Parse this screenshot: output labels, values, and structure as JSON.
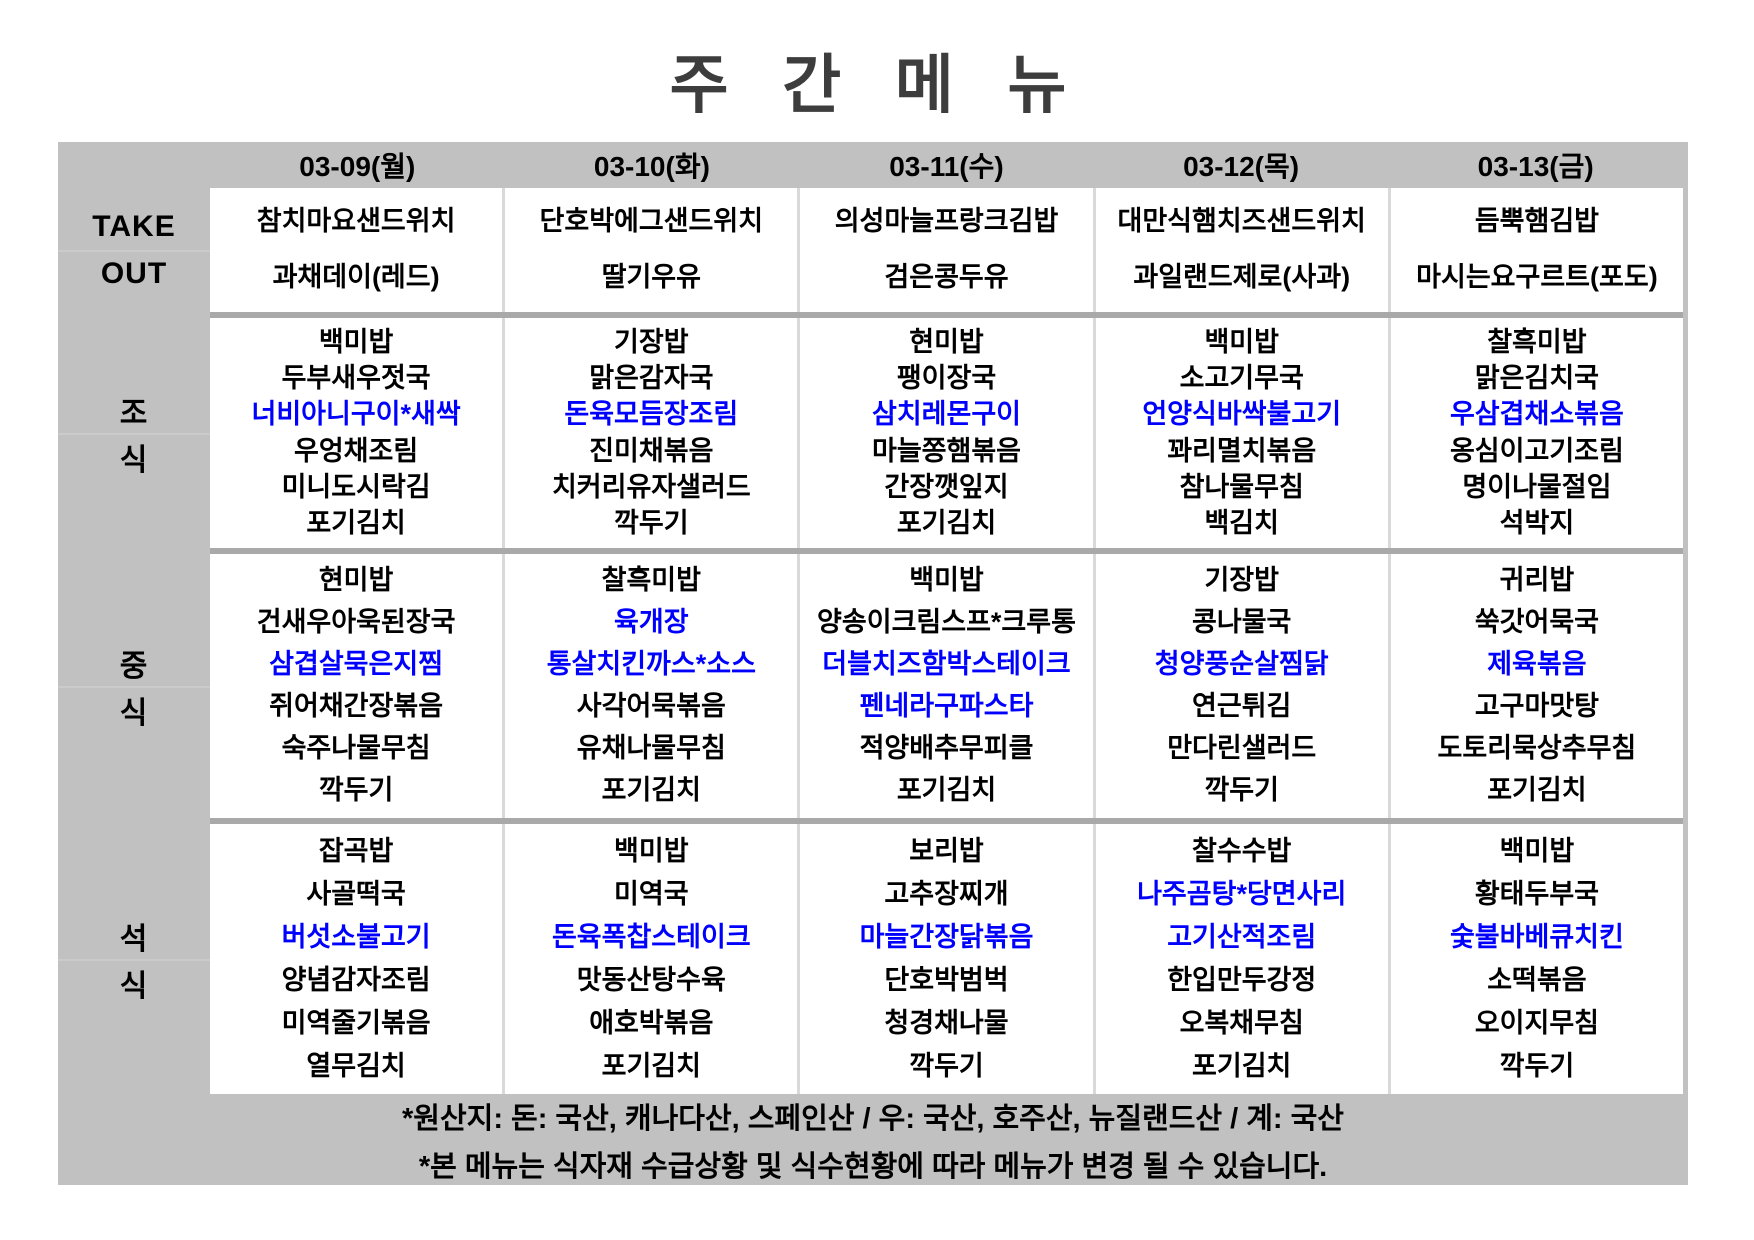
{
  "title": "주 간 메 뉴",
  "colors": {
    "highlight": "#0000ff",
    "table_bg": "#c1c1c1",
    "divider": "#a9a9a9",
    "cell_sep": "#d9d9d9",
    "label_sep": "#cbcbcb",
    "title_color": "#3d3d3d"
  },
  "sections": [
    {
      "id": "takeout",
      "label_lines": [
        "TAKE",
        "OUT"
      ]
    },
    {
      "id": "breakfast",
      "label_lines": [
        "조",
        "식"
      ]
    },
    {
      "id": "lunch",
      "label_lines": [
        "중",
        "식"
      ]
    },
    {
      "id": "dinner",
      "label_lines": [
        "석",
        "식"
      ]
    }
  ],
  "days": [
    {
      "date": "03-09(월)",
      "takeout": [
        {
          "text": "참치마요샌드위치",
          "highlight": false
        },
        {
          "text": "과채데이(레드)",
          "highlight": false
        }
      ],
      "breakfast": [
        {
          "text": "백미밥",
          "highlight": false
        },
        {
          "text": "두부새우젓국",
          "highlight": false
        },
        {
          "text": "너비아니구이*새싹",
          "highlight": true
        },
        {
          "text": "우엉채조림",
          "highlight": false
        },
        {
          "text": "미니도시락김",
          "highlight": false
        },
        {
          "text": "포기김치",
          "highlight": false
        }
      ],
      "lunch": [
        {
          "text": "현미밥",
          "highlight": false
        },
        {
          "text": "건새우아욱된장국",
          "highlight": false
        },
        {
          "text": "삼겹살묵은지찜",
          "highlight": true
        },
        {
          "text": "쥐어채간장볶음",
          "highlight": false
        },
        {
          "text": "숙주나물무침",
          "highlight": false
        },
        {
          "text": "깍두기",
          "highlight": false
        }
      ],
      "dinner": [
        {
          "text": "잡곡밥",
          "highlight": false
        },
        {
          "text": "사골떡국",
          "highlight": false
        },
        {
          "text": "버섯소불고기",
          "highlight": true
        },
        {
          "text": "양념감자조림",
          "highlight": false
        },
        {
          "text": "미역줄기볶음",
          "highlight": false
        },
        {
          "text": "열무김치",
          "highlight": false
        }
      ]
    },
    {
      "date": "03-10(화)",
      "takeout": [
        {
          "text": "단호박에그샌드위치",
          "highlight": false
        },
        {
          "text": "딸기우유",
          "highlight": false
        }
      ],
      "breakfast": [
        {
          "text": "기장밥",
          "highlight": false
        },
        {
          "text": "맑은감자국",
          "highlight": false
        },
        {
          "text": "돈육모듬장조림",
          "highlight": true
        },
        {
          "text": "진미채볶음",
          "highlight": false
        },
        {
          "text": "치커리유자샐러드",
          "highlight": false
        },
        {
          "text": "깍두기",
          "highlight": false
        }
      ],
      "lunch": [
        {
          "text": "찰흑미밥",
          "highlight": false
        },
        {
          "text": "육개장",
          "highlight": true
        },
        {
          "text": "통살치킨까스*소스",
          "highlight": true
        },
        {
          "text": "사각어묵볶음",
          "highlight": false
        },
        {
          "text": "유채나물무침",
          "highlight": false
        },
        {
          "text": "포기김치",
          "highlight": false
        }
      ],
      "dinner": [
        {
          "text": "백미밥",
          "highlight": false
        },
        {
          "text": "미역국",
          "highlight": false
        },
        {
          "text": "돈육폭찹스테이크",
          "highlight": true
        },
        {
          "text": "맛동산탕수육",
          "highlight": false
        },
        {
          "text": "애호박볶음",
          "highlight": false
        },
        {
          "text": "포기김치",
          "highlight": false
        }
      ]
    },
    {
      "date": "03-11(수)",
      "takeout": [
        {
          "text": "의성마늘프랑크김밥",
          "highlight": false
        },
        {
          "text": "검은콩두유",
          "highlight": false
        }
      ],
      "breakfast": [
        {
          "text": "현미밥",
          "highlight": false
        },
        {
          "text": "팽이장국",
          "highlight": false
        },
        {
          "text": "삼치레몬구이",
          "highlight": true
        },
        {
          "text": "마늘쫑햄볶음",
          "highlight": false
        },
        {
          "text": "간장깻잎지",
          "highlight": false
        },
        {
          "text": "포기김치",
          "highlight": false
        }
      ],
      "lunch": [
        {
          "text": "백미밥",
          "highlight": false
        },
        {
          "text": "양송이크림스프*크루통",
          "highlight": false
        },
        {
          "text": "더블치즈함박스테이크",
          "highlight": true
        },
        {
          "text": "펜네라구파스타",
          "highlight": true
        },
        {
          "text": "적양배추무피클",
          "highlight": false
        },
        {
          "text": "포기김치",
          "highlight": false
        }
      ],
      "dinner": [
        {
          "text": "보리밥",
          "highlight": false
        },
        {
          "text": "고추장찌개",
          "highlight": false
        },
        {
          "text": "마늘간장닭볶음",
          "highlight": true
        },
        {
          "text": "단호박범벅",
          "highlight": false
        },
        {
          "text": "청경채나물",
          "highlight": false
        },
        {
          "text": "깍두기",
          "highlight": false
        }
      ]
    },
    {
      "date": "03-12(목)",
      "takeout": [
        {
          "text": "대만식햄치즈샌드위치",
          "highlight": false
        },
        {
          "text": "과일랜드제로(사과)",
          "highlight": false
        }
      ],
      "breakfast": [
        {
          "text": "백미밥",
          "highlight": false
        },
        {
          "text": "소고기무국",
          "highlight": false
        },
        {
          "text": "언양식바싹불고기",
          "highlight": true
        },
        {
          "text": "꽈리멸치볶음",
          "highlight": false
        },
        {
          "text": "참나물무침",
          "highlight": false
        },
        {
          "text": "백김치",
          "highlight": false
        }
      ],
      "lunch": [
        {
          "text": "기장밥",
          "highlight": false
        },
        {
          "text": "콩나물국",
          "highlight": false
        },
        {
          "text": "청양풍순살찜닭",
          "highlight": true
        },
        {
          "text": "연근튀김",
          "highlight": false
        },
        {
          "text": "만다린샐러드",
          "highlight": false
        },
        {
          "text": "깍두기",
          "highlight": false
        }
      ],
      "dinner": [
        {
          "text": "찰수수밥",
          "highlight": false
        },
        {
          "text": "나주곰탕*당면사리",
          "highlight": true
        },
        {
          "text": "고기산적조림",
          "highlight": true
        },
        {
          "text": "한입만두강정",
          "highlight": false
        },
        {
          "text": "오복채무침",
          "highlight": false
        },
        {
          "text": "포기김치",
          "highlight": false
        }
      ]
    },
    {
      "date": "03-13(금)",
      "takeout": [
        {
          "text": "듬뿍햄김밥",
          "highlight": false
        },
        {
          "text": "마시는요구르트(포도)",
          "highlight": false
        }
      ],
      "breakfast": [
        {
          "text": "찰흑미밥",
          "highlight": false
        },
        {
          "text": "맑은김치국",
          "highlight": false
        },
        {
          "text": "우삼겹채소볶음",
          "highlight": true
        },
        {
          "text": "옹심이고기조림",
          "highlight": false
        },
        {
          "text": "명이나물절임",
          "highlight": false
        },
        {
          "text": "석박지",
          "highlight": false
        }
      ],
      "lunch": [
        {
          "text": "귀리밥",
          "highlight": false
        },
        {
          "text": "쑥갓어묵국",
          "highlight": false
        },
        {
          "text": "제육볶음",
          "highlight": true
        },
        {
          "text": "고구마맛탕",
          "highlight": false
        },
        {
          "text": "도토리묵상추무침",
          "highlight": false
        },
        {
          "text": "포기김치",
          "highlight": false
        }
      ],
      "dinner": [
        {
          "text": "백미밥",
          "highlight": false
        },
        {
          "text": "황태두부국",
          "highlight": false
        },
        {
          "text": "숯불바베큐치킨",
          "highlight": true
        },
        {
          "text": "소떡볶음",
          "highlight": false
        },
        {
          "text": "오이지무침",
          "highlight": false
        },
        {
          "text": "깍두기",
          "highlight": false
        }
      ]
    }
  ],
  "footer": {
    "origin_note": "*원산지: 돈: 국산, 캐나다산, 스페인산 / 우: 국산, 호주산, 뉴질랜드산 / 계: 국산",
    "change_note": "*본 메뉴는 식자재 수급상황 및 식수현황에 따라 메뉴가 변경 될 수 있습니다."
  }
}
